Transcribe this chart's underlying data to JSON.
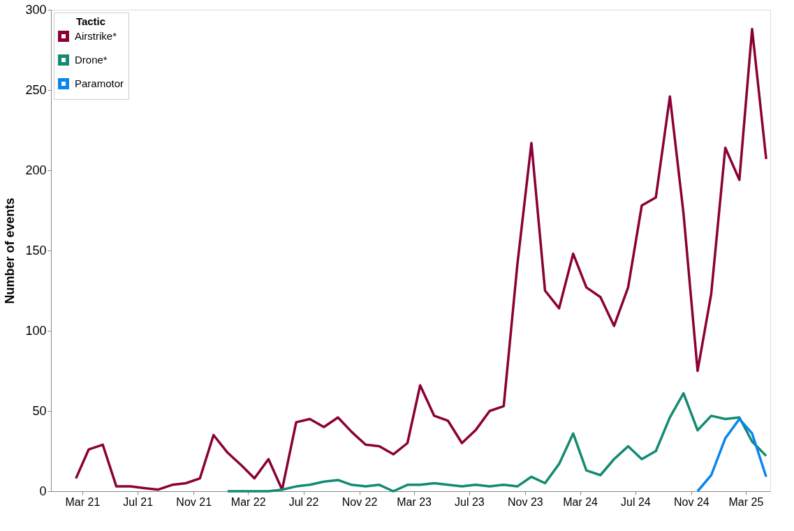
{
  "chart_data": {
    "type": "line",
    "ylabel": "Number of events",
    "legend_title": "Tactic",
    "legend": "top left",
    "grid": false,
    "marker": "none",
    "line_style": "solid",
    "x": [
      "2021-02-15",
      "2021-03-15",
      "2021-04-15",
      "2021-05-15",
      "2021-06-15",
      "2021-07-15",
      "2021-08-15",
      "2021-09-15",
      "2021-10-15",
      "2021-11-15",
      "2021-12-15",
      "2022-01-15",
      "2022-02-15",
      "2022-03-15",
      "2022-04-15",
      "2022-05-15",
      "2022-06-15",
      "2022-07-15",
      "2022-08-15",
      "2022-09-15",
      "2022-10-15",
      "2022-11-15",
      "2022-12-15",
      "2023-01-15",
      "2023-02-15",
      "2023-03-15",
      "2023-04-15",
      "2023-05-15",
      "2023-06-15",
      "2023-07-15",
      "2023-08-15",
      "2023-09-15",
      "2023-10-15",
      "2023-11-15",
      "2023-12-15",
      "2024-01-15",
      "2024-02-15",
      "2024-03-15",
      "2024-04-15",
      "2024-05-15",
      "2024-06-15",
      "2024-07-15",
      "2024-08-15",
      "2024-09-15",
      "2024-10-15",
      "2024-11-15",
      "2024-12-15",
      "2025-01-15",
      "2025-02-15",
      "2025-03-15",
      "2025-04-15"
    ],
    "series": [
      {
        "name": "Airstrike*",
        "color": "#8b0036",
        "values": [
          8,
          26,
          29,
          3,
          3,
          2,
          1,
          4,
          5,
          8,
          35,
          24,
          16,
          8,
          20,
          1,
          43,
          45,
          40,
          46,
          37,
          29,
          28,
          23,
          30,
          66,
          47,
          44,
          30,
          38,
          50,
          53,
          141,
          217,
          125,
          114,
          148,
          127,
          121,
          103,
          127,
          178,
          183,
          246,
          173,
          75,
          123,
          214,
          194,
          288,
          207
        ]
      },
      {
        "name": "Drone*",
        "color": "#138a72",
        "values": [
          null,
          null,
          null,
          null,
          null,
          null,
          null,
          null,
          null,
          null,
          null,
          0,
          0,
          0,
          0,
          1,
          3,
          4,
          6,
          7,
          4,
          3,
          4,
          0,
          4,
          4,
          5,
          4,
          3,
          4,
          3,
          4,
          3,
          9,
          5,
          17,
          36,
          13,
          10,
          20,
          28,
          20,
          25,
          46,
          61,
          38,
          47,
          45,
          46,
          31,
          22
        ]
      },
      {
        "name": "Paramotor",
        "color": "#0a84f0",
        "values": [
          null,
          null,
          null,
          null,
          null,
          null,
          null,
          null,
          null,
          null,
          null,
          null,
          null,
          null,
          null,
          null,
          null,
          null,
          null,
          null,
          null,
          null,
          null,
          null,
          null,
          null,
          null,
          null,
          null,
          null,
          null,
          null,
          null,
          null,
          null,
          null,
          null,
          null,
          null,
          null,
          null,
          null,
          null,
          null,
          null,
          0,
          10,
          33,
          45,
          36,
          9
        ]
      }
    ],
    "xlim": [
      "2020-12-22",
      "2025-04-24"
    ],
    "xticks": [
      {
        "value": "2021-03-01",
        "label": "Mar 21"
      },
      {
        "value": "2021-07-01",
        "label": "Jul 21"
      },
      {
        "value": "2021-11-01",
        "label": "Nov 21"
      },
      {
        "value": "2022-03-01",
        "label": "Mar 22"
      },
      {
        "value": "2022-07-01",
        "label": "Jul 22"
      },
      {
        "value": "2022-11-01",
        "label": "Nov 22"
      },
      {
        "value": "2023-03-01",
        "label": "Mar 23"
      },
      {
        "value": "2023-07-01",
        "label": "Jul 23"
      },
      {
        "value": "2023-11-01",
        "label": "Nov 23"
      },
      {
        "value": "2024-03-01",
        "label": "Mar 24"
      },
      {
        "value": "2024-07-01",
        "label": "Jul 24"
      },
      {
        "value": "2024-11-01",
        "label": "Nov 24"
      },
      {
        "value": "2025-03-01",
        "label": "Mar 25"
      }
    ],
    "ylim": [
      0,
      300
    ],
    "yticks": [
      0,
      50,
      100,
      150,
      200,
      250,
      300
    ]
  }
}
